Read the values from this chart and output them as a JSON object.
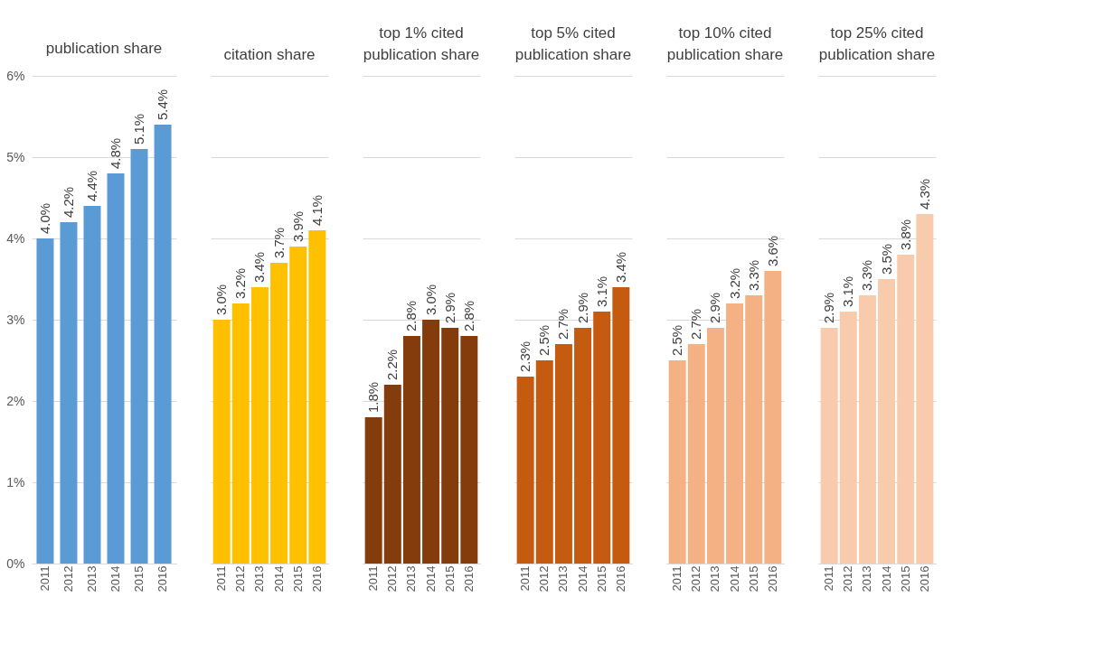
{
  "chart_data": [
    {
      "type": "bar",
      "title": "publication share",
      "categories": [
        "2011",
        "2012",
        "2013",
        "2014",
        "2015",
        "2016"
      ],
      "values": [
        4.0,
        4.2,
        4.4,
        4.8,
        5.1,
        5.4
      ],
      "value_labels": [
        "4.0%",
        "4.2%",
        "4.4%",
        "4.8%",
        "5.1%",
        "5.4%"
      ],
      "color": "#5b9bd5",
      "ylim": [
        0,
        6
      ],
      "yticks": [
        {
          "value": 0,
          "label": "0%"
        },
        {
          "value": 1,
          "label": "1%"
        },
        {
          "value": 2,
          "label": "2%"
        },
        {
          "value": 3,
          "label": "3%"
        },
        {
          "value": 4,
          "label": "4%"
        },
        {
          "value": 5,
          "label": "5%"
        },
        {
          "value": 6,
          "label": "6%"
        }
      ],
      "grid": "y"
    },
    {
      "type": "bar",
      "title": "citation share",
      "categories": [
        "2011",
        "2012",
        "2013",
        "2014",
        "2015",
        "2016"
      ],
      "values": [
        3.0,
        3.2,
        3.4,
        3.7,
        3.9,
        4.1
      ],
      "value_labels": [
        "3.0%",
        "3.2%",
        "3.4%",
        "3.7%",
        "3.9%",
        "4.1%"
      ],
      "color": "#ffc000",
      "ylim": [
        0,
        6
      ],
      "yticks": [
        {
          "value": 0,
          "label": null
        },
        {
          "value": 1,
          "label": null
        },
        {
          "value": 2,
          "label": null
        },
        {
          "value": 3,
          "label": null
        },
        {
          "value": 4,
          "label": null
        },
        {
          "value": 5,
          "label": null
        },
        {
          "value": 6,
          "label": null
        }
      ],
      "grid": "y",
      "tick_labels": "x"
    },
    {
      "type": "bar",
      "title": "top 1% cited publication share",
      "categories": [
        "2011",
        "2012",
        "2013",
        "2014",
        "2015",
        "2016"
      ],
      "values": [
        1.8,
        2.2,
        2.8,
        3.0,
        2.9,
        2.8
      ],
      "value_labels": [
        "1.8%",
        "2.2%",
        "2.8%",
        "3.0%",
        "2.9%",
        "2.8%"
      ],
      "color": "#843c0c",
      "ylim": [
        0,
        6
      ],
      "yticks": [
        {
          "value": 0,
          "label": null
        },
        {
          "value": 1,
          "label": null
        },
        {
          "value": 2,
          "label": null
        },
        {
          "value": 3,
          "label": null
        },
        {
          "value": 4,
          "label": null
        },
        {
          "value": 5,
          "label": null
        },
        {
          "value": 6,
          "label": null
        }
      ],
      "grid": "y",
      "tick_labels": "x"
    },
    {
      "type": "bar",
      "title": "top 5% cited publication share",
      "categories": [
        "2011",
        "2012",
        "2013",
        "2014",
        "2015",
        "2016"
      ],
      "values": [
        2.3,
        2.5,
        2.7,
        2.9,
        3.1,
        3.4
      ],
      "value_labels": [
        "2.3%",
        "2.5%",
        "2.7%",
        "2.9%",
        "3.1%",
        "3.4%"
      ],
      "color": "#c55a11",
      "ylim": [
        0,
        6
      ],
      "yticks": [
        {
          "value": 0,
          "label": null
        },
        {
          "value": 1,
          "label": null
        },
        {
          "value": 2,
          "label": null
        },
        {
          "value": 3,
          "label": null
        },
        {
          "value": 4,
          "label": null
        },
        {
          "value": 5,
          "label": null
        },
        {
          "value": 6,
          "label": null
        }
      ],
      "grid": "y",
      "tick_labels": "x"
    },
    {
      "type": "bar",
      "title": "top 10% cited publication share",
      "categories": [
        "2011",
        "2012",
        "2013",
        "2014",
        "2015",
        "2016"
      ],
      "values": [
        2.5,
        2.7,
        2.9,
        3.2,
        3.3,
        3.6
      ],
      "value_labels": [
        "2.5%",
        "2.7%",
        "2.9%",
        "3.2%",
        "3.3%",
        "3.6%"
      ],
      "color": "#f4b183",
      "ylim": [
        0,
        6
      ],
      "yticks": [
        {
          "value": 0,
          "label": null
        },
        {
          "value": 1,
          "label": null
        },
        {
          "value": 2,
          "label": null
        },
        {
          "value": 3,
          "label": null
        },
        {
          "value": 4,
          "label": null
        },
        {
          "value": 5,
          "label": null
        },
        {
          "value": 6,
          "label": null
        }
      ],
      "grid": "y",
      "tick_labels": "x"
    },
    {
      "type": "bar",
      "title": "top 25% cited publication share",
      "categories": [
        "2011",
        "2012",
        "2013",
        "2014",
        "2015",
        "2016"
      ],
      "values": [
        2.9,
        3.1,
        3.3,
        3.5,
        3.8,
        4.3
      ],
      "value_labels": [
        "2.9%",
        "3.1%",
        "3.3%",
        "3.5%",
        "3.8%",
        "4.3%"
      ],
      "color": "#f8cbad",
      "ylim": [
        0,
        6
      ],
      "yticks": [
        {
          "value": 0,
          "label": null
        },
        {
          "value": 1,
          "label": null
        },
        {
          "value": 2,
          "label": null
        },
        {
          "value": 3,
          "label": null
        },
        {
          "value": 4,
          "label": null
        },
        {
          "value": 5,
          "label": null
        },
        {
          "value": 6,
          "label": null
        }
      ],
      "grid": "y",
      "tick_labels": "x"
    }
  ]
}
